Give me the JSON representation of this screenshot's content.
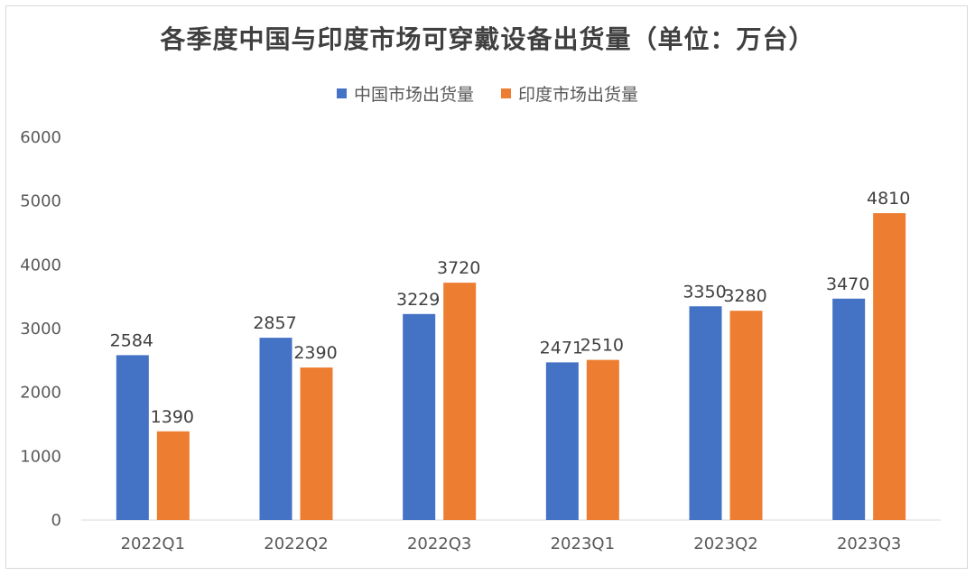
{
  "chart_data": {
    "type": "bar",
    "title": "各季度中国与印度市场可穿戴设备出货量（单位：万台）",
    "xlabel": "",
    "ylabel": "",
    "categories": [
      "2022Q1",
      "2022Q2",
      "2022Q3",
      "2023Q1",
      "2023Q2",
      "2023Q3"
    ],
    "series": [
      {
        "name": "中国市场出货量",
        "color": "#4472c4",
        "values": [
          2584,
          2857,
          3229,
          2471,
          3350,
          3470
        ]
      },
      {
        "name": "印度市场出货量",
        "color": "#ed7d31",
        "values": [
          1390,
          2390,
          3720,
          2510,
          3280,
          4810
        ]
      }
    ],
    "ylim": [
      0,
      6000
    ],
    "yticks": [
      0,
      1000,
      2000,
      3000,
      4000,
      5000,
      6000
    ],
    "grid": false,
    "legend_position": "top"
  }
}
